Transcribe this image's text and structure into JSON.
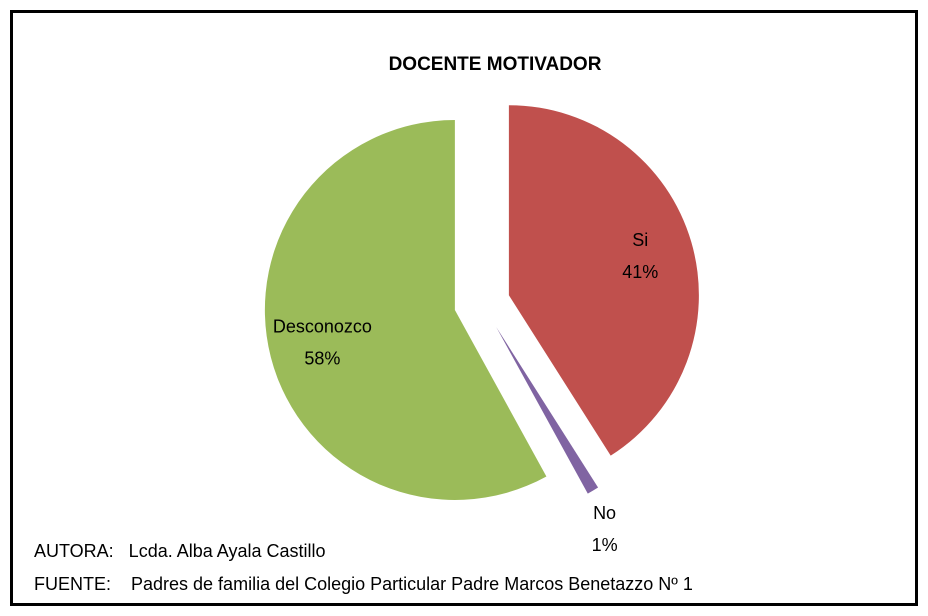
{
  "chart_data": {
    "type": "pie",
    "title": "DOCENTE MOTIVADOR",
    "categories": [
      "Si",
      "No",
      "Desconozco"
    ],
    "values": [
      41,
      1,
      58
    ],
    "value_labels": [
      "41%",
      "1%",
      "58%"
    ],
    "colors": [
      "#c0504d",
      "#8064a2",
      "#9bbb59"
    ],
    "annotations": [
      "AUTORA:   Lcda. Alba Ayala Castillo",
      "FUENTE:    Padres de familia del Colegio Particular Padre Marcos Benetazzo Nº 1"
    ]
  }
}
